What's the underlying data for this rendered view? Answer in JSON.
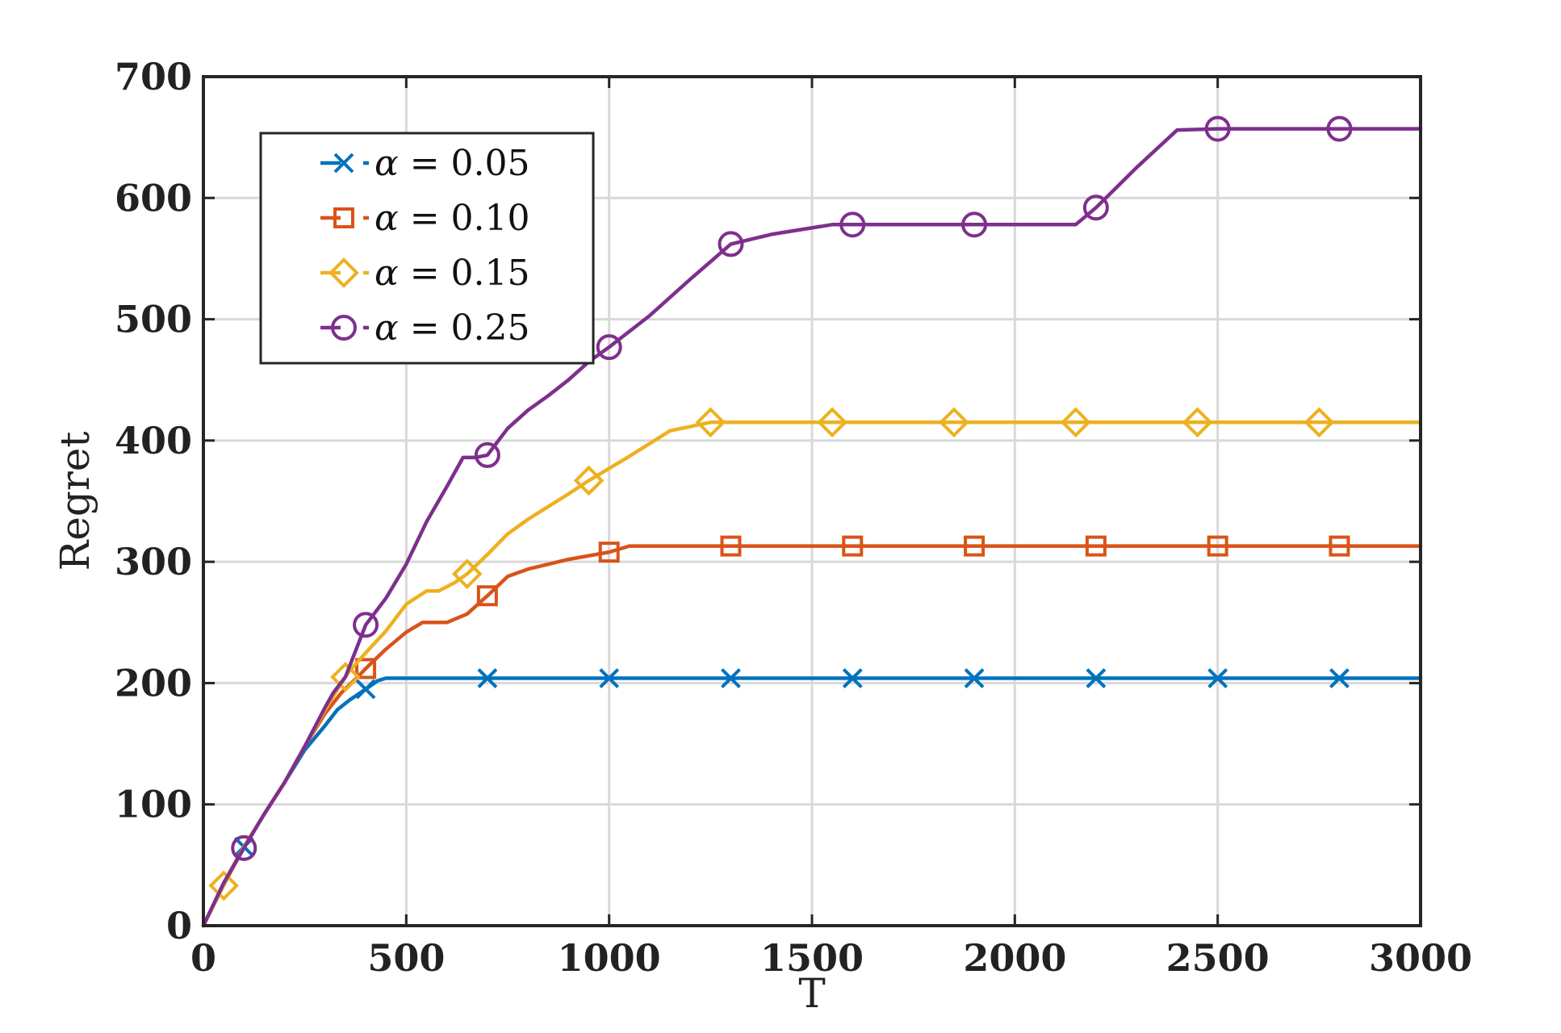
{
  "chart_data": {
    "type": "line",
    "title": "",
    "xlabel": "T",
    "ylabel": "Regret",
    "xlim": [
      0,
      3000
    ],
    "ylim": [
      0,
      700
    ],
    "xticks": [
      "0",
      "500",
      "1000",
      "1500",
      "2000",
      "2500",
      "3000"
    ],
    "yticks": [
      "0",
      "100",
      "200",
      "300",
      "400",
      "500",
      "600",
      "700"
    ],
    "grid": true,
    "legend_position": "top-left",
    "series": [
      {
        "name": "α = 0.05",
        "legend_symbol": "α",
        "legend_value": "= 0.05",
        "color": "#0072BD",
        "marker": "x",
        "points": [
          [
            0,
            0
          ],
          [
            50,
            35
          ],
          [
            100,
            65
          ],
          [
            150,
            92
          ],
          [
            200,
            118
          ],
          [
            250,
            145
          ],
          [
            300,
            165
          ],
          [
            330,
            178
          ],
          [
            360,
            186
          ],
          [
            400,
            195
          ],
          [
            430,
            202
          ],
          [
            450,
            204
          ],
          [
            700,
            204
          ],
          [
            1000,
            204
          ],
          [
            1300,
            204
          ],
          [
            1600,
            204
          ],
          [
            1900,
            204
          ],
          [
            2200,
            204
          ],
          [
            2500,
            204
          ],
          [
            2800,
            204
          ],
          [
            3000,
            204
          ]
        ],
        "markers_x": [
          100,
          400,
          700,
          1000,
          1300,
          1600,
          1900,
          2200,
          2500,
          2800
        ]
      },
      {
        "name": "α = 0.10",
        "legend_symbol": "α",
        "legend_value": "= 0.10",
        "color": "#D95319",
        "marker": "square",
        "points": [
          [
            0,
            0
          ],
          [
            50,
            35
          ],
          [
            100,
            65
          ],
          [
            150,
            92
          ],
          [
            200,
            118
          ],
          [
            250,
            148
          ],
          [
            300,
            175
          ],
          [
            340,
            192
          ],
          [
            380,
            205
          ],
          [
            400,
            212
          ],
          [
            450,
            228
          ],
          [
            500,
            242
          ],
          [
            540,
            250
          ],
          [
            600,
            250
          ],
          [
            650,
            257
          ],
          [
            700,
            272
          ],
          [
            750,
            288
          ],
          [
            800,
            294
          ],
          [
            900,
            302
          ],
          [
            1000,
            308
          ],
          [
            1050,
            313
          ],
          [
            1300,
            313
          ],
          [
            1600,
            313
          ],
          [
            1900,
            313
          ],
          [
            2200,
            313
          ],
          [
            2500,
            313
          ],
          [
            2800,
            313
          ],
          [
            3000,
            313
          ]
        ],
        "markers_x": [
          400,
          700,
          1000,
          1300,
          1600,
          1900,
          2200,
          2500,
          2800
        ]
      },
      {
        "name": "α = 0.15",
        "legend_symbol": "α",
        "legend_value": "= 0.15",
        "color": "#EDB120",
        "marker": "diamond",
        "points": [
          [
            0,
            0
          ],
          [
            50,
            33
          ],
          [
            100,
            65
          ],
          [
            150,
            92
          ],
          [
            200,
            118
          ],
          [
            250,
            148
          ],
          [
            300,
            178
          ],
          [
            340,
            200
          ],
          [
            360,
            210
          ],
          [
            400,
            225
          ],
          [
            450,
            243
          ],
          [
            500,
            265
          ],
          [
            550,
            276
          ],
          [
            580,
            276
          ],
          [
            620,
            283
          ],
          [
            650,
            290
          ],
          [
            700,
            306
          ],
          [
            750,
            323
          ],
          [
            800,
            335
          ],
          [
            900,
            356
          ],
          [
            950,
            367
          ],
          [
            1000,
            377
          ],
          [
            1050,
            387
          ],
          [
            1150,
            408
          ],
          [
            1250,
            415
          ],
          [
            1550,
            415
          ],
          [
            1850,
            415
          ],
          [
            2150,
            415
          ],
          [
            2450,
            415
          ],
          [
            2750,
            415
          ],
          [
            3000,
            415
          ]
        ],
        "markers_x": [
          50,
          350,
          650,
          950,
          1250,
          1550,
          1850,
          2150,
          2450,
          2750
        ]
      },
      {
        "name": "α = 0.25",
        "legend_symbol": "α",
        "legend_value": "= 0.25",
        "color": "#7E2F8E",
        "marker": "circle",
        "points": [
          [
            0,
            0
          ],
          [
            50,
            35
          ],
          [
            100,
            64
          ],
          [
            150,
            92
          ],
          [
            200,
            118
          ],
          [
            250,
            148
          ],
          [
            300,
            180
          ],
          [
            320,
            192
          ],
          [
            350,
            205
          ],
          [
            400,
            248
          ],
          [
            450,
            270
          ],
          [
            500,
            298
          ],
          [
            550,
            333
          ],
          [
            600,
            362
          ],
          [
            640,
            386
          ],
          [
            670,
            386
          ],
          [
            700,
            388
          ],
          [
            750,
            410
          ],
          [
            800,
            425
          ],
          [
            850,
            437
          ],
          [
            900,
            450
          ],
          [
            950,
            465
          ],
          [
            1000,
            477
          ],
          [
            1100,
            503
          ],
          [
            1200,
            533
          ],
          [
            1300,
            562
          ],
          [
            1400,
            570
          ],
          [
            1550,
            578
          ],
          [
            1600,
            578
          ],
          [
            1900,
            578
          ],
          [
            2150,
            578
          ],
          [
            2200,
            592
          ],
          [
            2300,
            625
          ],
          [
            2400,
            656
          ],
          [
            2500,
            657
          ],
          [
            2800,
            657
          ],
          [
            3000,
            657
          ]
        ],
        "markers_x": [
          100,
          400,
          700,
          1000,
          1300,
          1600,
          1900,
          2200,
          2500,
          2800
        ]
      }
    ]
  }
}
